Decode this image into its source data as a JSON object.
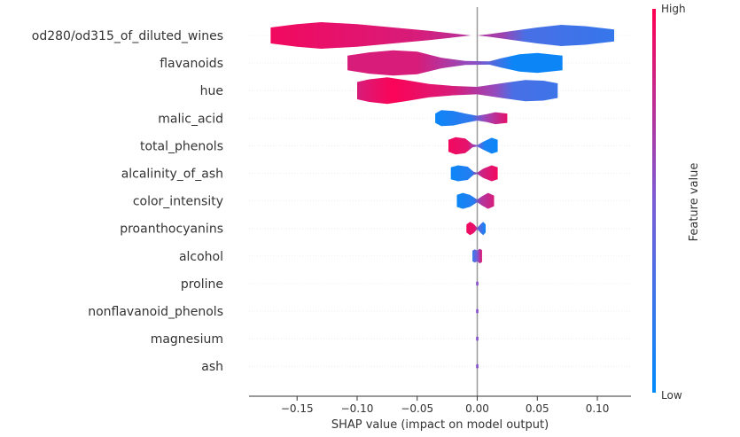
{
  "chart_data": {
    "type": "violin",
    "xlabel": "SHAP value (impact on model output)",
    "colorbar": {
      "label": "Feature value",
      "high_label": "High",
      "low_label": "Low",
      "high_color": "#ff0052",
      "low_color": "#008bfb"
    },
    "xlim": [
      -0.19,
      0.128
    ],
    "xticks": [
      -0.15,
      -0.1,
      -0.05,
      0.0,
      0.05,
      0.1
    ],
    "xtick_labels": [
      "−0.15",
      "−0.10",
      "−0.05",
      "0.00",
      "0.05",
      "0.10"
    ],
    "features": [
      {
        "name": "od280/od315_of_diluted_wines",
        "min": -0.172,
        "max": 0.114,
        "density": [
          [
            -0.172,
            0.6
          ],
          [
            -0.15,
            0.85
          ],
          [
            -0.13,
            1.0
          ],
          [
            -0.1,
            0.85
          ],
          [
            -0.07,
            0.6
          ],
          [
            -0.04,
            0.35
          ],
          [
            -0.02,
            0.15
          ],
          [
            -0.005,
            0.0
          ],
          [
            0.0,
            0.0
          ],
          [
            0.01,
            0.1
          ],
          [
            0.03,
            0.35
          ],
          [
            0.05,
            0.6
          ],
          [
            0.07,
            0.8
          ],
          [
            0.09,
            0.7
          ],
          [
            0.114,
            0.45
          ]
        ],
        "color": [
          [
            -0.172,
            0.95
          ],
          [
            -0.05,
            0.85
          ],
          [
            0.02,
            0.65
          ],
          [
            0.04,
            0.3
          ],
          [
            0.114,
            0.22
          ]
        ]
      },
      {
        "name": "flavanoids",
        "min": -0.108,
        "max": 0.071,
        "density": [
          [
            -0.108,
            0.55
          ],
          [
            -0.09,
            0.8
          ],
          [
            -0.07,
            0.95
          ],
          [
            -0.05,
            0.85
          ],
          [
            -0.03,
            0.4
          ],
          [
            -0.01,
            0.15
          ],
          [
            0.01,
            0.12
          ],
          [
            0.02,
            0.35
          ],
          [
            0.035,
            0.65
          ],
          [
            0.05,
            0.75
          ],
          [
            0.071,
            0.55
          ]
        ],
        "color": [
          [
            -0.108,
            0.85
          ],
          [
            -0.05,
            0.85
          ],
          [
            0.0,
            0.55
          ],
          [
            0.03,
            0.05
          ],
          [
            0.071,
            0.05
          ]
        ]
      },
      {
        "name": "hue",
        "min": -0.1,
        "max": 0.067,
        "density": [
          [
            -0.1,
            0.65
          ],
          [
            -0.09,
            0.85
          ],
          [
            -0.075,
            1.0
          ],
          [
            -0.06,
            0.8
          ],
          [
            -0.04,
            0.5
          ],
          [
            -0.02,
            0.35
          ],
          [
            0.0,
            0.28
          ],
          [
            0.02,
            0.55
          ],
          [
            0.04,
            0.8
          ],
          [
            0.055,
            0.75
          ],
          [
            0.067,
            0.55
          ]
        ],
        "color": [
          [
            -0.1,
            0.85
          ],
          [
            -0.07,
            0.98
          ],
          [
            -0.02,
            0.85
          ],
          [
            0.015,
            0.6
          ],
          [
            0.03,
            0.3
          ],
          [
            0.067,
            0.25
          ]
        ]
      },
      {
        "name": "malic_acid",
        "min": -0.035,
        "max": 0.025,
        "density": [
          [
            -0.035,
            0.35
          ],
          [
            -0.03,
            0.6
          ],
          [
            -0.02,
            0.55
          ],
          [
            -0.01,
            0.35
          ],
          [
            0.0,
            0.18
          ],
          [
            0.008,
            0.3
          ],
          [
            0.015,
            0.45
          ],
          [
            0.025,
            0.35
          ]
        ],
        "color": [
          [
            -0.035,
            0.05
          ],
          [
            -0.005,
            0.2
          ],
          [
            0.005,
            0.6
          ],
          [
            0.025,
            0.9
          ]
        ]
      },
      {
        "name": "total_phenols",
        "min": -0.024,
        "max": 0.017,
        "density": [
          [
            -0.024,
            0.45
          ],
          [
            -0.018,
            0.65
          ],
          [
            -0.01,
            0.55
          ],
          [
            -0.004,
            0.12
          ],
          [
            0.0,
            0.05
          ],
          [
            0.005,
            0.3
          ],
          [
            0.012,
            0.6
          ],
          [
            0.017,
            0.45
          ]
        ],
        "color": [
          [
            -0.024,
            0.95
          ],
          [
            -0.008,
            0.9
          ],
          [
            0.0,
            0.5
          ],
          [
            0.006,
            0.1
          ],
          [
            0.017,
            0.05
          ]
        ]
      },
      {
        "name": "alcalinity_of_ash",
        "min": -0.022,
        "max": 0.017,
        "density": [
          [
            -0.022,
            0.45
          ],
          [
            -0.016,
            0.6
          ],
          [
            -0.008,
            0.5
          ],
          [
            -0.003,
            0.12
          ],
          [
            0.0,
            0.05
          ],
          [
            0.005,
            0.35
          ],
          [
            0.012,
            0.6
          ],
          [
            0.017,
            0.45
          ]
        ],
        "color": [
          [
            -0.022,
            0.05
          ],
          [
            -0.005,
            0.15
          ],
          [
            0.003,
            0.8
          ],
          [
            0.017,
            0.95
          ]
        ]
      },
      {
        "name": "color_intensity",
        "min": -0.017,
        "max": 0.014,
        "density": [
          [
            -0.017,
            0.45
          ],
          [
            -0.012,
            0.6
          ],
          [
            -0.006,
            0.45
          ],
          [
            0.0,
            0.1
          ],
          [
            0.004,
            0.35
          ],
          [
            0.009,
            0.6
          ],
          [
            0.014,
            0.4
          ]
        ],
        "color": [
          [
            -0.017,
            0.05
          ],
          [
            -0.003,
            0.15
          ],
          [
            0.003,
            0.7
          ],
          [
            0.014,
            0.85
          ]
        ]
      },
      {
        "name": "proanthocyanins",
        "min": -0.009,
        "max": 0.007,
        "density": [
          [
            -0.009,
            0.3
          ],
          [
            -0.006,
            0.5
          ],
          [
            -0.003,
            0.35
          ],
          [
            0.0,
            0.05
          ],
          [
            0.003,
            0.35
          ],
          [
            0.005,
            0.5
          ],
          [
            0.007,
            0.3
          ]
        ],
        "color": [
          [
            -0.009,
            0.95
          ],
          [
            -0.002,
            0.9
          ],
          [
            0.001,
            0.4
          ],
          [
            0.007,
            0.05
          ]
        ]
      },
      {
        "name": "alcohol",
        "min": -0.004,
        "max": 0.004,
        "density": [
          [
            -0.004,
            0.4
          ],
          [
            -0.002,
            0.5
          ],
          [
            0.0,
            0.4
          ],
          [
            0.002,
            0.55
          ],
          [
            0.004,
            0.45
          ]
        ],
        "color": [
          [
            -0.004,
            0.2
          ],
          [
            0.0,
            0.5
          ],
          [
            0.004,
            0.9
          ]
        ]
      },
      {
        "name": "proline",
        "min": -0.001,
        "max": 0.001,
        "density": [
          [
            -0.001,
            0.12
          ],
          [
            0.0,
            0.18
          ],
          [
            0.001,
            0.12
          ]
        ],
        "color": [
          [
            -0.001,
            0.55
          ],
          [
            0.001,
            0.55
          ]
        ]
      },
      {
        "name": "nonflavanoid_phenols",
        "min": -0.001,
        "max": 0.001,
        "density": [
          [
            -0.001,
            0.12
          ],
          [
            0.0,
            0.18
          ],
          [
            0.001,
            0.12
          ]
        ],
        "color": [
          [
            -0.001,
            0.55
          ],
          [
            0.001,
            0.55
          ]
        ]
      },
      {
        "name": "magnesium",
        "min": -0.001,
        "max": 0.001,
        "density": [
          [
            -0.001,
            0.12
          ],
          [
            0.0,
            0.18
          ],
          [
            0.001,
            0.12
          ]
        ],
        "color": [
          [
            -0.001,
            0.55
          ],
          [
            0.001,
            0.55
          ]
        ]
      },
      {
        "name": "ash",
        "min": -0.001,
        "max": 0.001,
        "density": [
          [
            -0.001,
            0.12
          ],
          [
            0.0,
            0.18
          ],
          [
            0.001,
            0.12
          ]
        ],
        "color": [
          [
            -0.001,
            0.55
          ],
          [
            0.001,
            0.55
          ]
        ]
      }
    ]
  }
}
